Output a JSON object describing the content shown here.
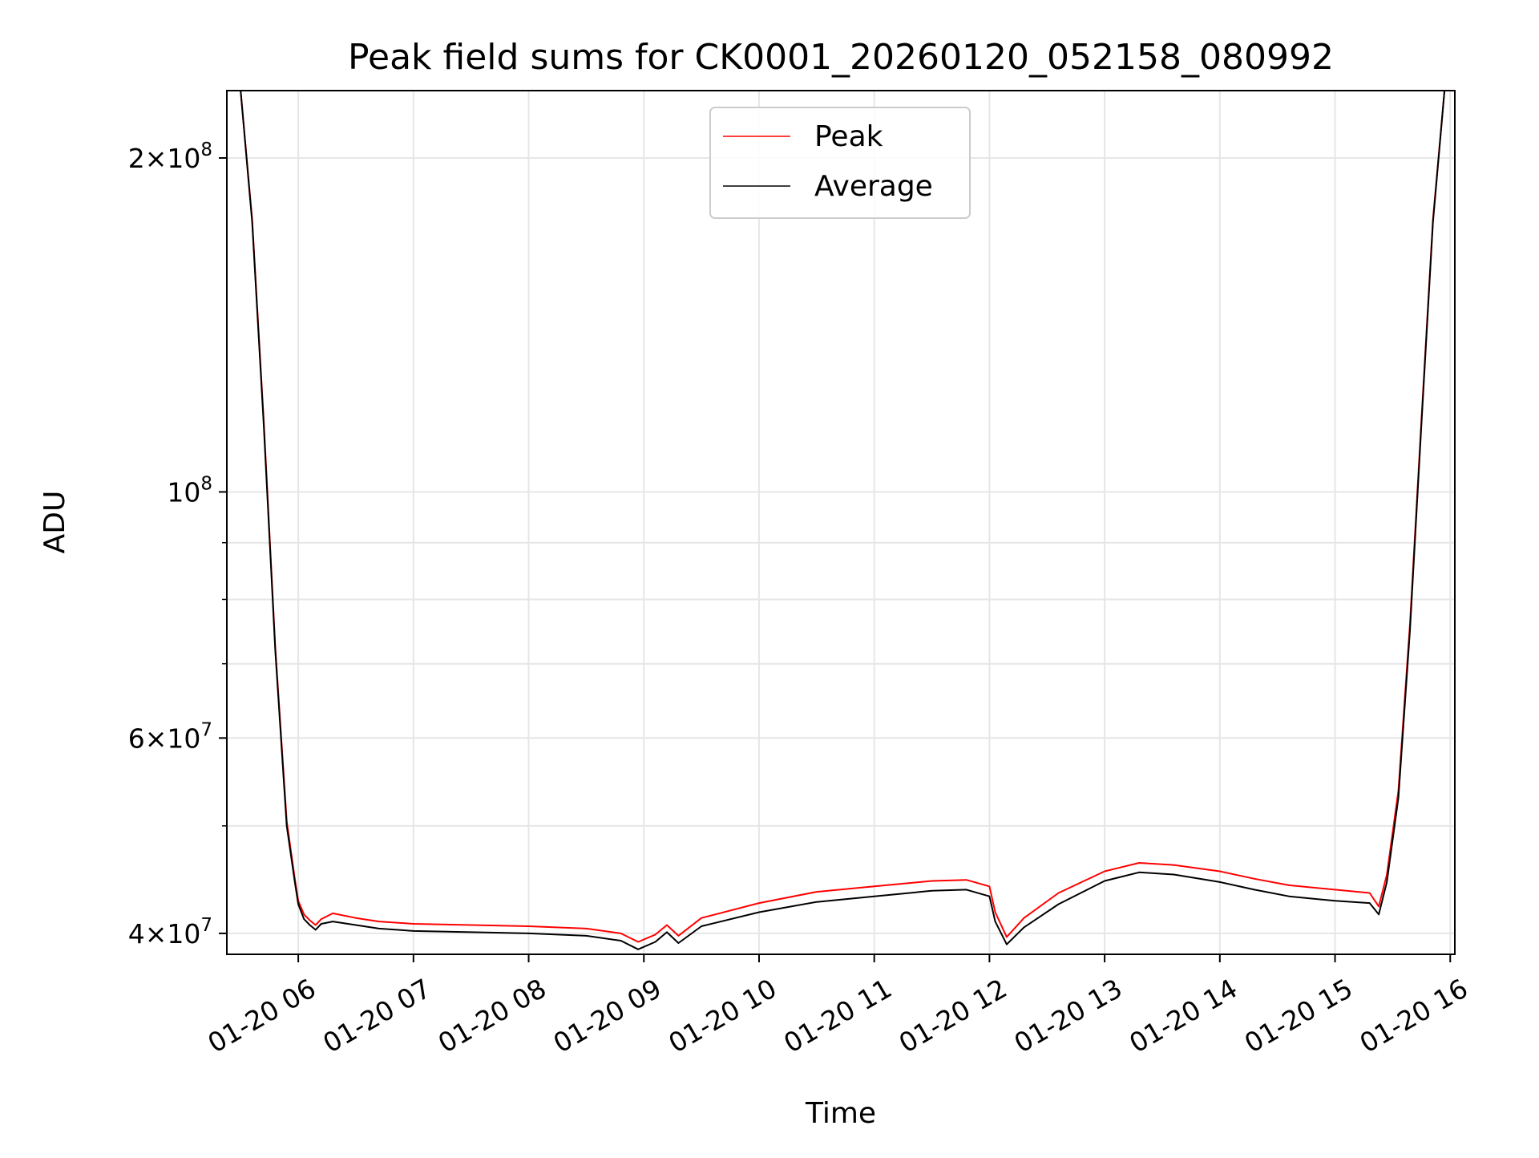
{
  "chart_data": {
    "type": "line",
    "title": "Peak field sums for CK0001_20260120_052158_080992",
    "xlabel": "Time",
    "ylabel": "ADU",
    "yscale": "log",
    "x_units": "hours since 2026-01-20 00:00",
    "xlim": [
      5.38,
      16.04
    ],
    "ylim": [
      38300000,
      230000000
    ],
    "grid": true,
    "legend_position": "upper center",
    "x_ticks": [
      {
        "value": 6,
        "label": "01-20 06"
      },
      {
        "value": 7,
        "label": "01-20 07"
      },
      {
        "value": 8,
        "label": "01-20 08"
      },
      {
        "value": 9,
        "label": "01-20 09"
      },
      {
        "value": 10,
        "label": "01-20 10"
      },
      {
        "value": 11,
        "label": "01-20 11"
      },
      {
        "value": 12,
        "label": "01-20 12"
      },
      {
        "value": 13,
        "label": "01-20 13"
      },
      {
        "value": 14,
        "label": "01-20 14"
      },
      {
        "value": 15,
        "label": "01-20 15"
      },
      {
        "value": 16,
        "label": "01-20 16"
      }
    ],
    "y_ticks_major": [
      {
        "value": 40000000,
        "base": "4×10",
        "exp": "7"
      },
      {
        "value": 60000000,
        "base": "6×10",
        "exp": "7"
      },
      {
        "value": 100000000,
        "base": "10",
        "exp": "8"
      },
      {
        "value": 200000000,
        "base": "2×10",
        "exp": "8"
      }
    ],
    "y_ticks_minor": [
      50000000,
      70000000,
      80000000,
      90000000
    ],
    "series": [
      {
        "name": "Average",
        "color": "#000000",
        "x": [
          5.38,
          5.5,
          5.6,
          5.7,
          5.8,
          5.9,
          5.97,
          6.0,
          6.05,
          6.1,
          6.15,
          6.2,
          6.3,
          6.5,
          6.7,
          7.0,
          7.5,
          8.0,
          8.5,
          8.8,
          8.95,
          9.1,
          9.2,
          9.3,
          9.5,
          10.0,
          10.5,
          11.0,
          11.5,
          11.8,
          12.0,
          12.05,
          12.15,
          12.3,
          12.6,
          13.0,
          13.3,
          13.6,
          14.0,
          14.3,
          14.6,
          15.0,
          15.3,
          15.38,
          15.45,
          15.55,
          15.65,
          15.75,
          15.85,
          15.95,
          16.04
        ],
        "y": [
          230000000,
          230000000,
          175000000,
          115000000,
          72000000,
          50000000,
          44500000,
          42500000,
          41200000,
          40700000,
          40300000,
          40800000,
          41000000,
          40700000,
          40400000,
          40200000,
          40100000,
          40000000,
          39800000,
          39400000,
          38700000,
          39300000,
          40100000,
          39200000,
          40600000,
          41800000,
          42700000,
          43200000,
          43700000,
          43800000,
          43200000,
          41000000,
          39100000,
          40500000,
          42500000,
          44600000,
          45400000,
          45200000,
          44500000,
          43800000,
          43200000,
          42800000,
          42600000,
          41600000,
          44500000,
          53000000,
          75000000,
          115000000,
          175000000,
          230000000,
          230000000
        ]
      },
      {
        "name": "Peak",
        "color": "#ff0000",
        "x": [
          5.38,
          5.5,
          5.6,
          5.7,
          5.8,
          5.9,
          5.97,
          6.0,
          6.05,
          6.1,
          6.15,
          6.2,
          6.3,
          6.5,
          6.7,
          7.0,
          7.5,
          8.0,
          8.5,
          8.8,
          8.95,
          9.1,
          9.2,
          9.3,
          9.5,
          10.0,
          10.5,
          11.0,
          11.5,
          11.8,
          12.0,
          12.05,
          12.15,
          12.3,
          12.6,
          13.0,
          13.3,
          13.6,
          14.0,
          14.3,
          14.6,
          15.0,
          15.3,
          15.38,
          15.45,
          15.55,
          15.65,
          15.75,
          15.85,
          15.95,
          16.04
        ],
        "y": [
          230000000,
          230000000,
          176000000,
          116000000,
          72500000,
          50500000,
          44800000,
          42800000,
          41600000,
          41100000,
          40700000,
          41200000,
          41700000,
          41300000,
          41000000,
          40800000,
          40700000,
          40600000,
          40400000,
          40000000,
          39300000,
          39900000,
          40700000,
          39800000,
          41300000,
          42600000,
          43600000,
          44100000,
          44600000,
          44700000,
          44100000,
          41800000,
          39700000,
          41300000,
          43500000,
          45500000,
          46300000,
          46100000,
          45500000,
          44800000,
          44200000,
          43800000,
          43500000,
          42300000,
          45200000,
          53800000,
          76000000,
          116000000,
          176000000,
          230000000,
          230000000
        ]
      }
    ]
  }
}
